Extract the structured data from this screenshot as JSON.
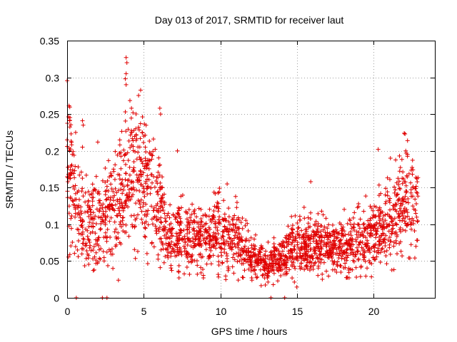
{
  "chart_data": {
    "type": "scatter",
    "title": "Day 013 of 2017, SRMTID for receiver laut",
    "xlabel": "GPS time / hours",
    "ylabel": "SRMTID / TECUs",
    "xlim": [
      0,
      24
    ],
    "ylim": [
      0,
      0.35
    ],
    "x_ticks": [
      0,
      5,
      10,
      15,
      20
    ],
    "x_tick_labels": [
      "0",
      "5",
      "10",
      "15",
      "20"
    ],
    "y_ticks": [
      0,
      0.05,
      0.1,
      0.15,
      0.2,
      0.25,
      0.3,
      0.35
    ],
    "y_tick_labels": [
      "0",
      "0.05",
      "0.1",
      "0.15",
      "0.2",
      "0.25",
      "0.3",
      "0.35"
    ],
    "grid": true,
    "marker": "+",
    "color": "#e00000",
    "series": [
      {
        "name": "SRMTID",
        "x_range": [
          0.0,
          22.9
        ],
        "profile": [
          [
            0.0,
            0.175
          ],
          [
            0.3,
            0.16
          ],
          [
            0.6,
            0.13
          ],
          [
            1.0,
            0.11
          ],
          [
            1.5,
            0.1
          ],
          [
            2.0,
            0.1
          ],
          [
            2.5,
            0.11
          ],
          [
            3.0,
            0.12
          ],
          [
            3.5,
            0.14
          ],
          [
            4.0,
            0.16
          ],
          [
            4.5,
            0.17
          ],
          [
            5.0,
            0.15
          ],
          [
            5.5,
            0.14
          ],
          [
            6.0,
            0.12
          ],
          [
            6.5,
            0.085
          ],
          [
            7.0,
            0.085
          ],
          [
            8.0,
            0.085
          ],
          [
            9.0,
            0.08
          ],
          [
            10.0,
            0.09
          ],
          [
            11.0,
            0.08
          ],
          [
            12.0,
            0.055
          ],
          [
            13.0,
            0.045
          ],
          [
            14.0,
            0.055
          ],
          [
            15.0,
            0.07
          ],
          [
            16.0,
            0.075
          ],
          [
            17.0,
            0.07
          ],
          [
            18.0,
            0.07
          ],
          [
            19.0,
            0.075
          ],
          [
            20.0,
            0.085
          ],
          [
            21.0,
            0.1
          ],
          [
            22.0,
            0.13
          ],
          [
            22.9,
            0.13
          ]
        ],
        "peaks": [
          [
            3.85,
            0.327
          ],
          [
            3.9,
            0.32
          ],
          [
            3.85,
            0.305
          ],
          [
            3.8,
            0.298
          ],
          [
            3.85,
            0.29
          ],
          [
            3.8,
            0.253
          ],
          [
            4.2,
            0.258
          ],
          [
            4.3,
            0.252
          ],
          [
            6.05,
            0.258
          ],
          [
            6.1,
            0.25
          ],
          [
            1.0,
            0.241
          ],
          [
            1.05,
            0.235
          ],
          [
            0.0,
            0.215
          ],
          [
            1.0,
            0.205
          ],
          [
            2.0,
            0.212
          ],
          [
            20.3,
            0.202
          ],
          [
            21.1,
            0.19
          ],
          [
            22.0,
            0.224
          ],
          [
            22.05,
            0.223
          ],
          [
            22.1,
            0.2
          ],
          [
            15.9,
            0.158
          ],
          [
            7.2,
            0.2
          ],
          [
            4.9,
            0.225
          ],
          [
            5.0,
            0.22
          ]
        ],
        "zeros": [
          0.6,
          2.3,
          2.6,
          13.3,
          14.2
        ]
      }
    ]
  }
}
